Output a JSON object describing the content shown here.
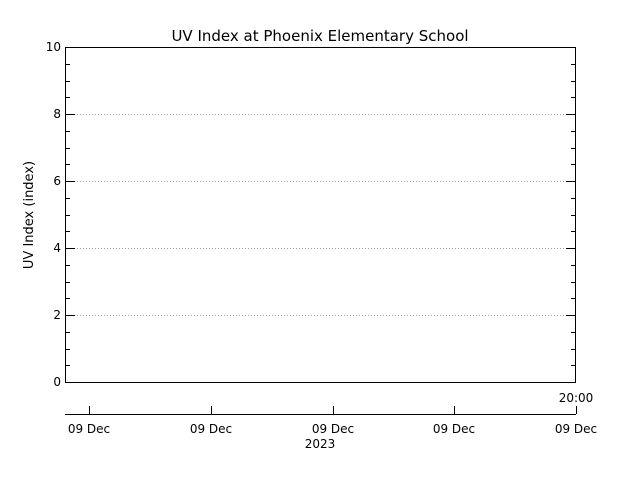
{
  "chart_data": {
    "type": "line",
    "title": "UV Index at Phoenix Elementary School",
    "ylabel": "UV Index (index)",
    "xlabel": "",
    "ylim": [
      0,
      10
    ],
    "y_ticks": [
      {
        "value": 0,
        "label": "0"
      },
      {
        "value": 2,
        "label": "2"
      },
      {
        "value": 4,
        "label": "4"
      },
      {
        "value": 6,
        "label": "6"
      },
      {
        "value": 8,
        "label": "8"
      },
      {
        "value": 10,
        "label": "10"
      }
    ],
    "y_minor_step": 0.5,
    "grid": true,
    "time_axis": {
      "end_label": "20:00",
      "tick_labels": [
        "09 Dec",
        "09 Dec",
        "09 Dec",
        "09 Dec",
        "09 Dec"
      ],
      "year_label": "2023"
    },
    "series": [],
    "colors": {
      "axis": "#000000",
      "grid": "#a0a0a0",
      "background": "#ffffff"
    }
  }
}
